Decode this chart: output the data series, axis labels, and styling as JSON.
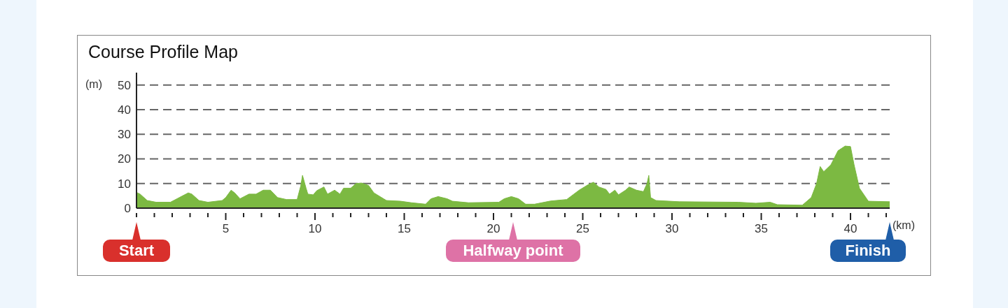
{
  "chart_data": {
    "type": "area",
    "title": "Course Profile Map",
    "xlabel": "(km)",
    "ylabel": "(m)",
    "color": "#7cb942",
    "x": [
      0,
      0.2,
      0.6,
      1.1,
      1.9,
      2.4,
      2.9,
      3.1,
      3.5,
      4.0,
      4.8,
      5.0,
      5.3,
      5.5,
      5.8,
      6.3,
      6.7,
      7.1,
      7.5,
      7.9,
      8.4,
      9.0,
      9.2,
      9.3,
      9.5,
      9.6,
      9.9,
      10.1,
      10.5,
      10.7,
      11.1,
      11.4,
      11.6,
      12.0,
      12.3,
      12.6,
      13.0,
      13.3,
      14.0,
      14.8,
      15.4,
      16.2,
      16.5,
      16.9,
      17.4,
      17.7,
      18.6,
      20.3,
      20.6,
      21.0,
      21.4,
      21.8,
      22.3,
      23.2,
      24.1,
      24.8,
      25.3,
      25.6,
      25.9,
      26.3,
      26.5,
      26.8,
      27.0,
      27.4,
      27.6,
      28.0,
      28.4,
      28.6,
      28.7,
      28.8,
      29.1,
      30.4,
      33.7,
      34.7,
      35.5,
      35.9,
      37.3,
      37.8,
      38.1,
      38.3,
      38.5,
      38.9,
      39.3,
      39.7,
      40.0,
      40.2,
      40.5,
      41.0,
      42.195
    ],
    "values": [
      6.4,
      5.7,
      3.1,
      2.4,
      2.4,
      4.3,
      6.2,
      5.7,
      3.1,
      2.4,
      3.1,
      4.3,
      7.3,
      6.2,
      3.8,
      5.7,
      5.7,
      7.3,
      7.3,
      4.3,
      3.5,
      3.5,
      9,
      13.3,
      8.1,
      5.7,
      5.4,
      7.1,
      8.6,
      5.7,
      7.3,
      5.7,
      8.1,
      8.1,
      10,
      10.2,
      9.2,
      6.2,
      3.1,
      2.8,
      2.2,
      1.6,
      3.8,
      4.7,
      3.8,
      2.8,
      2.2,
      2.4,
      3.8,
      4.7,
      3.8,
      1.6,
      1.6,
      2.9,
      3.5,
      7.3,
      9.5,
      10.5,
      8.6,
      7.6,
      5.7,
      7.3,
      5.4,
      7.3,
      8.6,
      7.3,
      6.7,
      10,
      13.3,
      4.3,
      3.1,
      2.6,
      2.4,
      2,
      2.4,
      1.4,
      1.2,
      4.3,
      10,
      16.9,
      14.8,
      17.6,
      23.3,
      25.2,
      25,
      17.6,
      8.1,
      2.8,
      2.6
    ],
    "xlim": [
      0,
      42.195
    ],
    "xticks": [
      {
        "value": 0,
        "label": null
      },
      {
        "value": 1,
        "label": null
      },
      {
        "value": 2,
        "label": null
      },
      {
        "value": 3,
        "label": null
      },
      {
        "value": 4,
        "label": null
      },
      5,
      {
        "value": 6,
        "label": null
      },
      {
        "value": 7,
        "label": null
      },
      {
        "value": 8,
        "label": null
      },
      {
        "value": 9,
        "label": null
      },
      10,
      {
        "value": 11,
        "label": null
      },
      {
        "value": 12,
        "label": null
      },
      {
        "value": 13,
        "label": null
      },
      {
        "value": 14,
        "label": null
      },
      15,
      {
        "value": 16,
        "label": null
      },
      {
        "value": 17,
        "label": null
      },
      {
        "value": 18,
        "label": null
      },
      {
        "value": 19,
        "label": null
      },
      20,
      {
        "value": 21,
        "label": null
      },
      {
        "value": 22,
        "label": null
      },
      {
        "value": 23,
        "label": null
      },
      {
        "value": 24,
        "label": null
      },
      25,
      {
        "value": 26,
        "label": null
      },
      {
        "value": 27,
        "label": null
      },
      {
        "value": 28,
        "label": null
      },
      {
        "value": 29,
        "label": null
      },
      30,
      {
        "value": 31,
        "label": null
      },
      {
        "value": 32,
        "label": null
      },
      {
        "value": 33,
        "label": null
      },
      {
        "value": 34,
        "label": null
      },
      35,
      {
        "value": 36,
        "label": null
      },
      {
        "value": 37,
        "label": null
      },
      {
        "value": 38,
        "label": null
      },
      {
        "value": 39,
        "label": null
      },
      40,
      {
        "value": 41,
        "label": null
      },
      {
        "value": 42,
        "label": null
      }
    ],
    "ylim": [
      0,
      55
    ],
    "yticks": [
      0,
      10,
      20,
      30,
      40,
      50
    ],
    "grid": "y",
    "marker": "none",
    "annotations": [
      {
        "text": "Start",
        "x": 0,
        "y": 0
      },
      {
        "text": "Halfway point",
        "x": 21.0975,
        "y": 0
      },
      {
        "text": "Finish",
        "x": 42.195,
        "y": 0
      }
    ]
  }
}
